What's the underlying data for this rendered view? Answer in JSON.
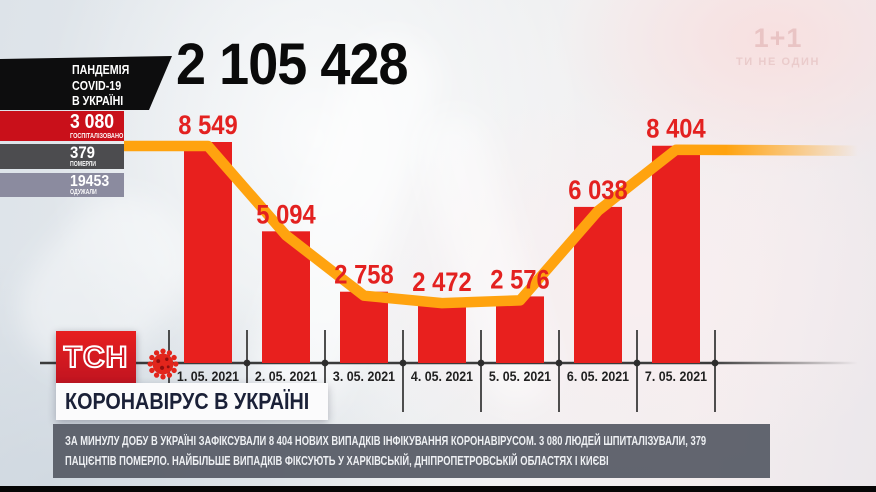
{
  "header": {
    "pandemic_box": {
      "line1": "ПАНДЕМІЯ",
      "line2": "COVID-19",
      "line3": "В УКРАЇНІ"
    },
    "total_cases": "2 105 428",
    "stats": [
      {
        "value": "3 080",
        "label": "ГОСПІТАЛІЗОВАНО",
        "color": "#c9101a"
      },
      {
        "value": "379",
        "label": "ПОМЕРЛИ",
        "color": "#4c4c4f"
      },
      {
        "value": "19453",
        "label": "ОДУЖАЛИ",
        "color": "#8b8b9f"
      }
    ]
  },
  "watermark": {
    "logo": "1+1",
    "slogan": "ТИ НЕ ОДИН"
  },
  "branding": {
    "tsn": "ТСН"
  },
  "banner": {
    "title": "КОРОНАВІРУС В УКРАЇНІ"
  },
  "ticker": {
    "line1": "ЗА МИНУЛУ ДОБУ В УКРАЇНІ ЗАФІКСУВАЛИ 8 404 НОВИХ ВИПАДКІВ ІНФІКУВАННЯ КОРОНАВІРУСОМ. 3 080 ЛЮДЕЙ ШПИТАЛІЗУВАЛИ, 379",
    "line2": "ПАЦІЄНТІВ ПОМЕРЛО. НАЙБІЛЬШЕ ВИПАДКІВ ФІКСУЮТЬ У ХАРКІВСЬКІЙ, ДНІПРОПЕТРОВСЬКІЙ ОБЛАСТЯХ І КИЄВІ"
  },
  "chart_data": {
    "type": "bar",
    "overlay": "line",
    "title": "",
    "xlabel": "",
    "ylabel": "",
    "categories": [
      "1. 05. 2021",
      "2. 05. 2021",
      "3. 05. 2021",
      "4. 05. 2021",
      "5. 05. 2021",
      "6. 05. 2021",
      "7. 05. 2021"
    ],
    "values": [
      8549,
      5094,
      2758,
      2472,
      2576,
      6038,
      8404
    ],
    "value_labels": [
      "8 549",
      "5 094",
      "2 758",
      "2 472",
      "2 576",
      "6 038",
      "8 404"
    ],
    "ylim": [
      0,
      8800
    ],
    "grid": false,
    "legend": null,
    "bar_color": "#e8201e",
    "line_color": "#ffa30f",
    "label_color": "#e32120",
    "axis_color": "#3b3b3b",
    "date_color": "#212121"
  }
}
